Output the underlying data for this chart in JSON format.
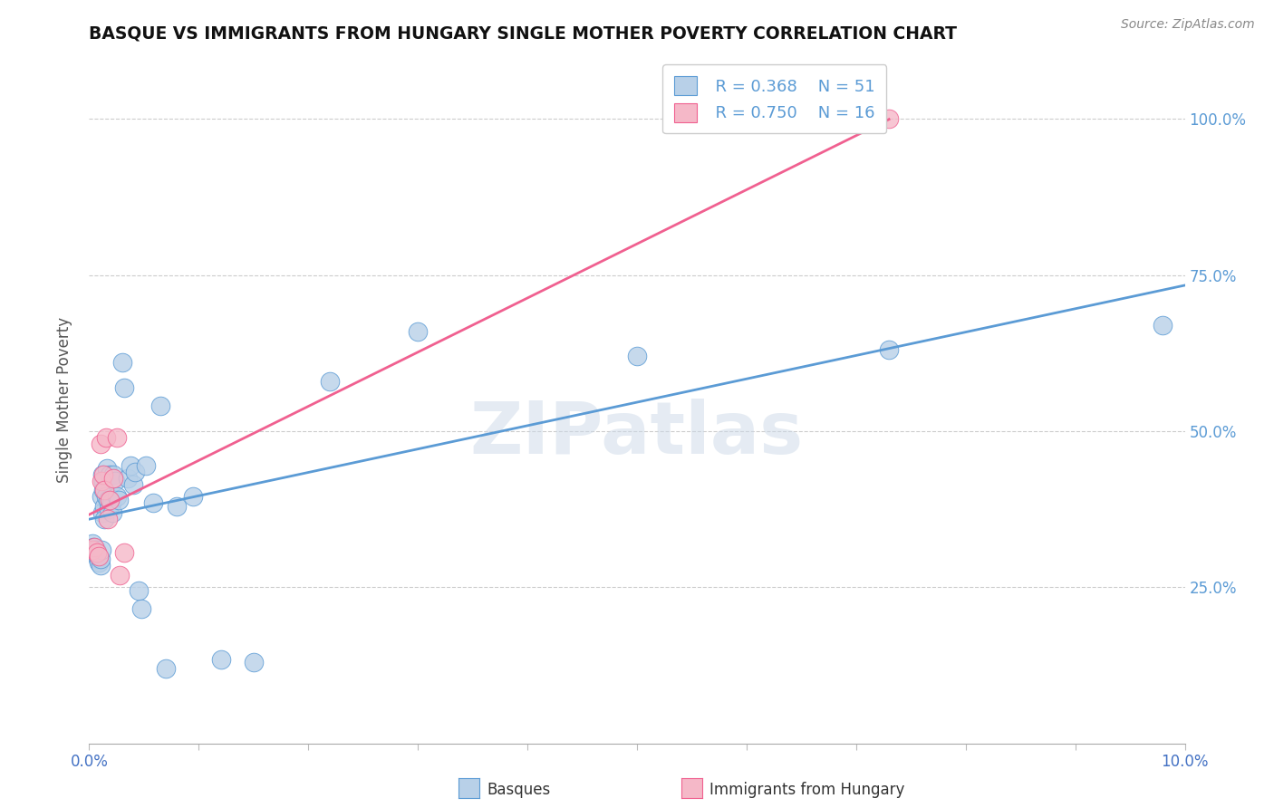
{
  "title": "BASQUE VS IMMIGRANTS FROM HUNGARY SINGLE MOTHER POVERTY CORRELATION CHART",
  "source": "Source: ZipAtlas.com",
  "ylabel": "Single Mother Poverty",
  "legend_basques": "Basques",
  "legend_hungary": "Immigrants from Hungary",
  "r_basques": "R = 0.368",
  "n_basques": "N = 51",
  "r_hungary": "R = 0.750",
  "n_hungary": "N = 16",
  "watermark": "ZIPatlas",
  "blue_fill": "#B8D0E8",
  "pink_fill": "#F5B8C8",
  "line_blue": "#5B9BD5",
  "line_pink": "#F06090",
  "xmin": 0.0,
  "xmax": 0.1,
  "ymin": 0.0,
  "ymax": 1.1,
  "basques_x": [
    0.0003,
    0.0004,
    0.0005,
    0.0006,
    0.0007,
    0.0008,
    0.0008,
    0.0009,
    0.0009,
    0.001,
    0.001,
    0.0011,
    0.0011,
    0.0012,
    0.0012,
    0.0013,
    0.0013,
    0.0014,
    0.0014,
    0.0015,
    0.0016,
    0.0017,
    0.0018,
    0.0019,
    0.002,
    0.0021,
    0.0022,
    0.0024,
    0.0025,
    0.0027,
    0.003,
    0.0032,
    0.0035,
    0.0038,
    0.004,
    0.0042,
    0.0045,
    0.0048,
    0.0052,
    0.0058,
    0.0065,
    0.007,
    0.008,
    0.0095,
    0.012,
    0.015,
    0.022,
    0.03,
    0.05,
    0.073,
    0.098
  ],
  "basques_y": [
    0.32,
    0.315,
    0.31,
    0.31,
    0.305,
    0.3,
    0.295,
    0.295,
    0.29,
    0.285,
    0.295,
    0.31,
    0.395,
    0.37,
    0.43,
    0.42,
    0.405,
    0.38,
    0.36,
    0.395,
    0.44,
    0.39,
    0.375,
    0.43,
    0.385,
    0.37,
    0.43,
    0.42,
    0.395,
    0.39,
    0.61,
    0.57,
    0.425,
    0.445,
    0.415,
    0.435,
    0.245,
    0.215,
    0.445,
    0.385,
    0.54,
    0.12,
    0.38,
    0.395,
    0.135,
    0.13,
    0.58,
    0.66,
    0.62,
    0.63,
    0.67
  ],
  "hungary_x": [
    0.0003,
    0.0005,
    0.0007,
    0.0009,
    0.001,
    0.0011,
    0.0013,
    0.0014,
    0.0015,
    0.0017,
    0.0019,
    0.0022,
    0.0025,
    0.0028,
    0.0032,
    0.073
  ],
  "hungary_y": [
    0.31,
    0.315,
    0.305,
    0.3,
    0.48,
    0.42,
    0.43,
    0.405,
    0.49,
    0.36,
    0.39,
    0.425,
    0.49,
    0.27,
    0.305,
    1.0
  ],
  "ytick_values": [
    0.25,
    0.5,
    0.75,
    1.0
  ]
}
